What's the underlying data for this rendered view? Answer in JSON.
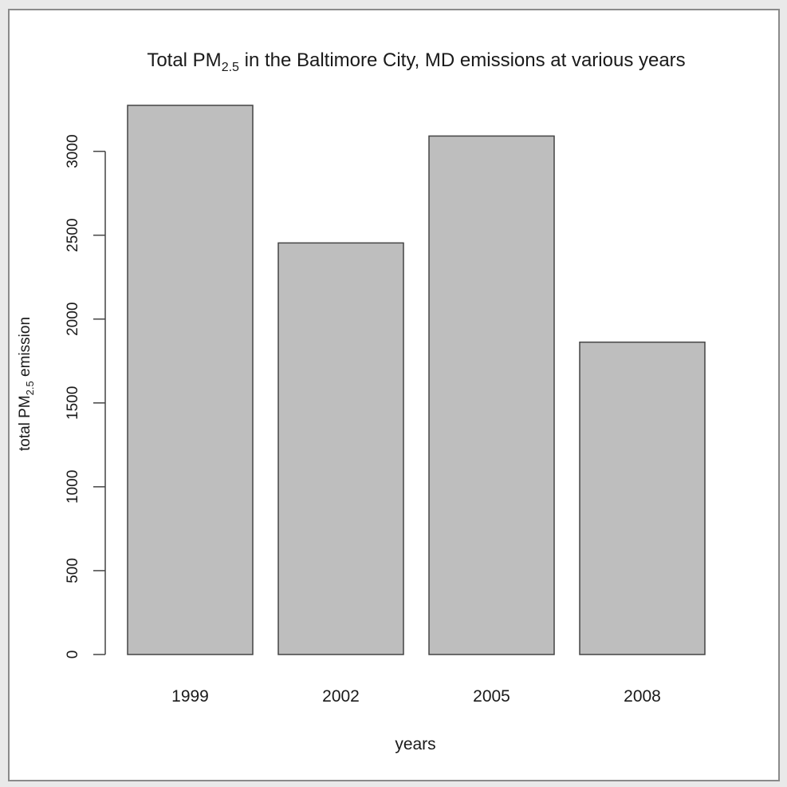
{
  "chart_data": {
    "type": "bar",
    "title": {
      "pre": "Total PM",
      "sub": "2.5",
      "post": " in the Baltimore City, MD emissions at various years"
    },
    "xlabel": "years",
    "ylabel": {
      "pre": "total PM",
      "sub": "2.5",
      "post": " emission"
    },
    "categories": [
      "1999",
      "2002",
      "2005",
      "2008"
    ],
    "values": [
      3274.2,
      2453.9,
      3091.4,
      1862.3
    ],
    "ylim": [
      0,
      3274.2
    ],
    "yticks": [
      0,
      500,
      1000,
      1500,
      2000,
      2500,
      3000
    ],
    "ytick_labels": [
      "0",
      "500",
      "1000",
      "1500",
      "2000",
      "2500",
      "3000"
    ],
    "grid": false,
    "legend": "none",
    "colors": {
      "bar_fill": "#bebebe",
      "bar_stroke": "#444444",
      "axis": "#444444",
      "text": "#1a1a1a"
    }
  }
}
